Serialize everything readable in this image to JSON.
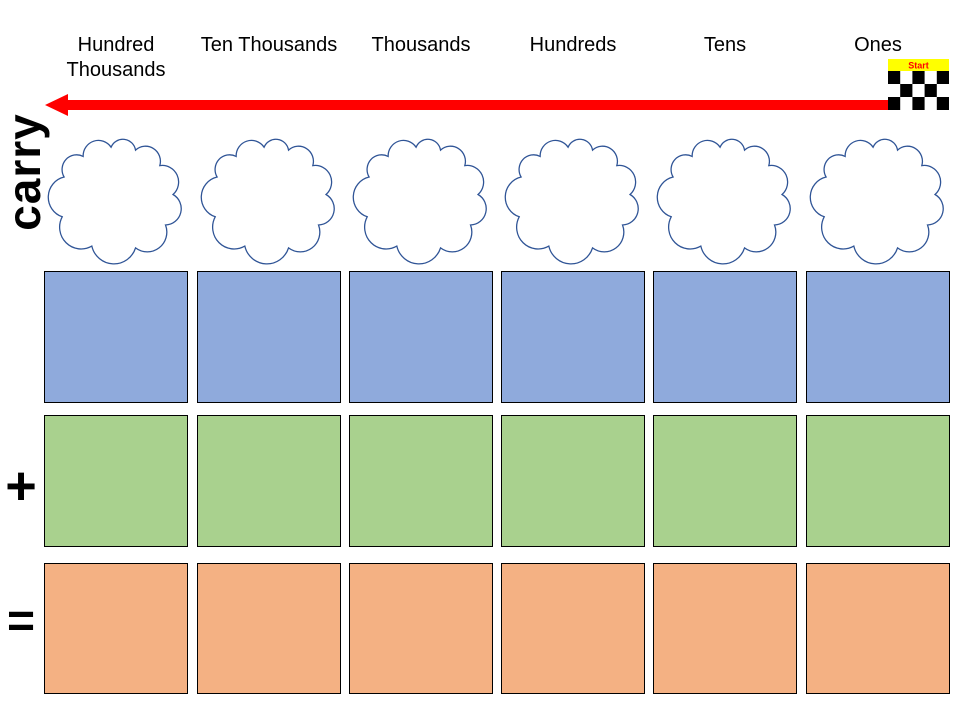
{
  "header": {
    "columns": [
      "Hundred Thousands",
      "Ten Thousands",
      "Thousands",
      "Hundreds",
      "Tens",
      "Ones"
    ]
  },
  "start_flag": {
    "label": "Start"
  },
  "row_labels": {
    "carry": "carry",
    "plus": "+",
    "equals": "="
  },
  "rows": {
    "carry": {
      "cells": [
        "",
        "",
        "",
        "",
        "",
        ""
      ]
    },
    "addend1": {
      "cells": [
        "",
        "",
        "",
        "",
        "",
        ""
      ]
    },
    "addend2": {
      "cells": [
        "",
        "",
        "",
        "",
        "",
        ""
      ]
    },
    "sum": {
      "cells": [
        "",
        "",
        "",
        "",
        "",
        ""
      ]
    }
  },
  "colors": {
    "arrow": "#FF0000",
    "addend1_fill": "#8FAADC",
    "addend2_fill": "#A9D18E",
    "sum_fill": "#F4B183",
    "cloud_outline": "#2F5496",
    "cloud_fill": "#FFFFFF",
    "flag_banner": "#FFFF00",
    "flag_label_text": "#FF0000",
    "flag_dark": "#000000",
    "box_border": "#000000",
    "text": "#000000"
  }
}
